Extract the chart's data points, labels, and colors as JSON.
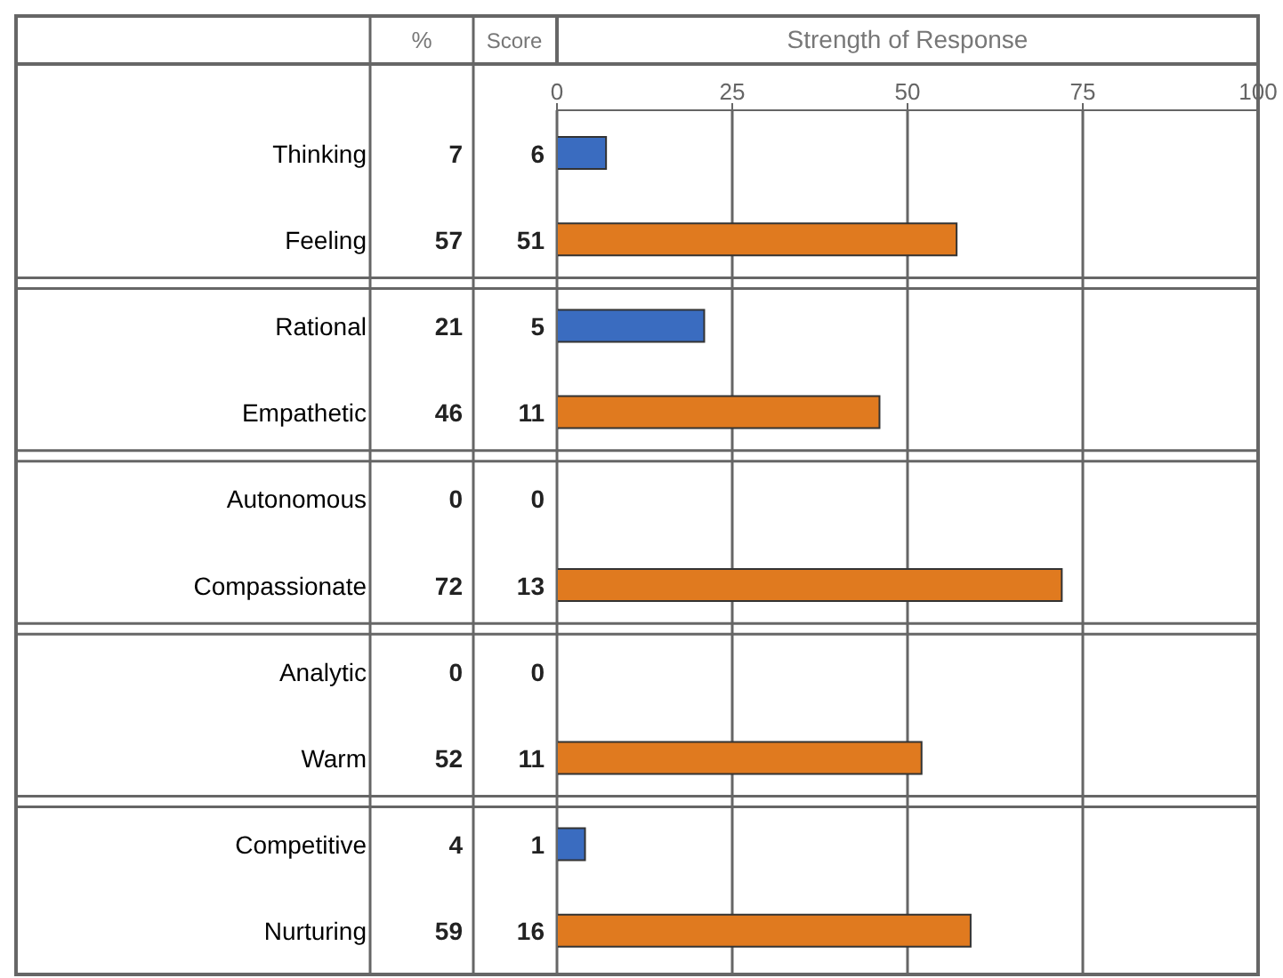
{
  "chart_data": {
    "type": "bar",
    "orientation": "horizontal",
    "xlabel": "Strength of Response",
    "categories": [
      "Thinking",
      "Feeling",
      "Rational",
      "Empathetic",
      "Autonomous",
      "Compassionate",
      "Analytic",
      "Warm",
      "Competitive",
      "Nurturing"
    ],
    "values": [
      7,
      57,
      21,
      46,
      0,
      72,
      0,
      52,
      4,
      59
    ],
    "colors": [
      "#3a6cc0",
      "#e07a1f",
      "#3a6cc0",
      "#e07a1f",
      "#3a6cc0",
      "#e07a1f",
      "#3a6cc0",
      "#e07a1f",
      "#3a6cc0",
      "#e07a1f"
    ],
    "annotations": [
      "%",
      "Score",
      "7",
      "6",
      "57",
      "51",
      "21",
      "5",
      "46",
      "11",
      "0",
      "0",
      "72",
      "13",
      "0",
      "0",
      "52",
      "11",
      "4",
      "1",
      "59",
      "16"
    ],
    "xlim": [
      0,
      100
    ],
    "xticks": [
      0,
      25,
      50,
      75,
      100
    ],
    "grid": "x"
  }
}
